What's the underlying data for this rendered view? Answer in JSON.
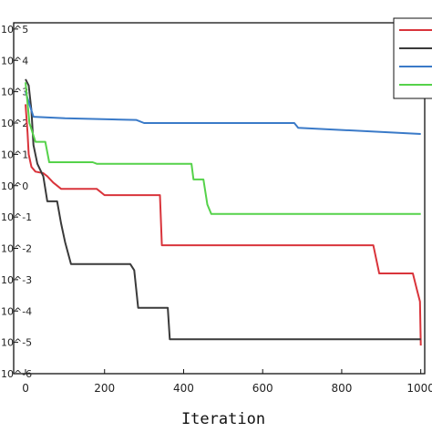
{
  "chart_data": {
    "type": "line",
    "title": "",
    "xlabel": "Iteration",
    "ylabel": "",
    "y_scale": "log",
    "xlim": [
      -30,
      1010
    ],
    "ylim_exponent": [
      -6,
      5.2
    ],
    "x_ticks": [
      0,
      200,
      400,
      600,
      800,
      1000
    ],
    "x_tick_labels": [
      "0",
      "200",
      "400",
      "600",
      "800",
      "1000"
    ],
    "y_tick_exponents": [
      5,
      4,
      3,
      2,
      1,
      0,
      -1,
      -2,
      -3,
      -4,
      -5,
      -6
    ],
    "y_tick_labels": [
      "10^5",
      "10^4",
      "10^3",
      "10^2",
      "10^1",
      "10^0",
      "10^-1",
      "10^-2",
      "10^-3",
      "10^-4",
      "10^-5",
      "10^-6"
    ],
    "grid": false,
    "legend_position": "top-right",
    "series": [
      {
        "color": "#d9343b",
        "points": [
          [
            0,
            2.6
          ],
          [
            5,
            1.7
          ],
          [
            8,
            1.0
          ],
          [
            15,
            0.6
          ],
          [
            25,
            0.45
          ],
          [
            45,
            0.4
          ],
          [
            55,
            0.3
          ],
          [
            70,
            0.1
          ],
          [
            90,
            -0.1
          ],
          [
            180,
            -0.1
          ],
          [
            200,
            -0.3
          ],
          [
            340,
            -0.3
          ],
          [
            345,
            -1.9
          ],
          [
            880,
            -1.9
          ],
          [
            895,
            -2.8
          ],
          [
            980,
            -2.8
          ],
          [
            990,
            -3.3
          ],
          [
            998,
            -3.7
          ],
          [
            1000,
            -5.1
          ]
        ]
      },
      {
        "color": "#3a3a3a",
        "points": [
          [
            0,
            3.4
          ],
          [
            8,
            3.2
          ],
          [
            15,
            2.4
          ],
          [
            20,
            1.3
          ],
          [
            30,
            0.7
          ],
          [
            45,
            0.3
          ],
          [
            55,
            -0.5
          ],
          [
            80,
            -0.5
          ],
          [
            90,
            -1.2
          ],
          [
            100,
            -1.8
          ],
          [
            115,
            -2.5
          ],
          [
            265,
            -2.5
          ],
          [
            275,
            -2.7
          ],
          [
            285,
            -3.9
          ],
          [
            360,
            -3.9
          ],
          [
            365,
            -4.9
          ],
          [
            1000,
            -4.9
          ]
        ]
      },
      {
        "color": "#3a7ac8",
        "points": [
          [
            0,
            3.0
          ],
          [
            10,
            2.6
          ],
          [
            20,
            2.2
          ],
          [
            100,
            2.15
          ],
          [
            280,
            2.1
          ],
          [
            300,
            2.0
          ],
          [
            680,
            2.0
          ],
          [
            690,
            1.85
          ],
          [
            1000,
            1.65
          ]
        ]
      },
      {
        "color": "#55d24a",
        "points": [
          [
            0,
            3.3
          ],
          [
            10,
            2.0
          ],
          [
            25,
            1.4
          ],
          [
            50,
            1.4
          ],
          [
            60,
            0.75
          ],
          [
            170,
            0.75
          ],
          [
            180,
            0.7
          ],
          [
            420,
            0.7
          ],
          [
            425,
            0.2
          ],
          [
            450,
            0.2
          ],
          [
            460,
            -0.6
          ],
          [
            470,
            -0.9
          ],
          [
            1000,
            -0.9
          ]
        ]
      }
    ]
  }
}
